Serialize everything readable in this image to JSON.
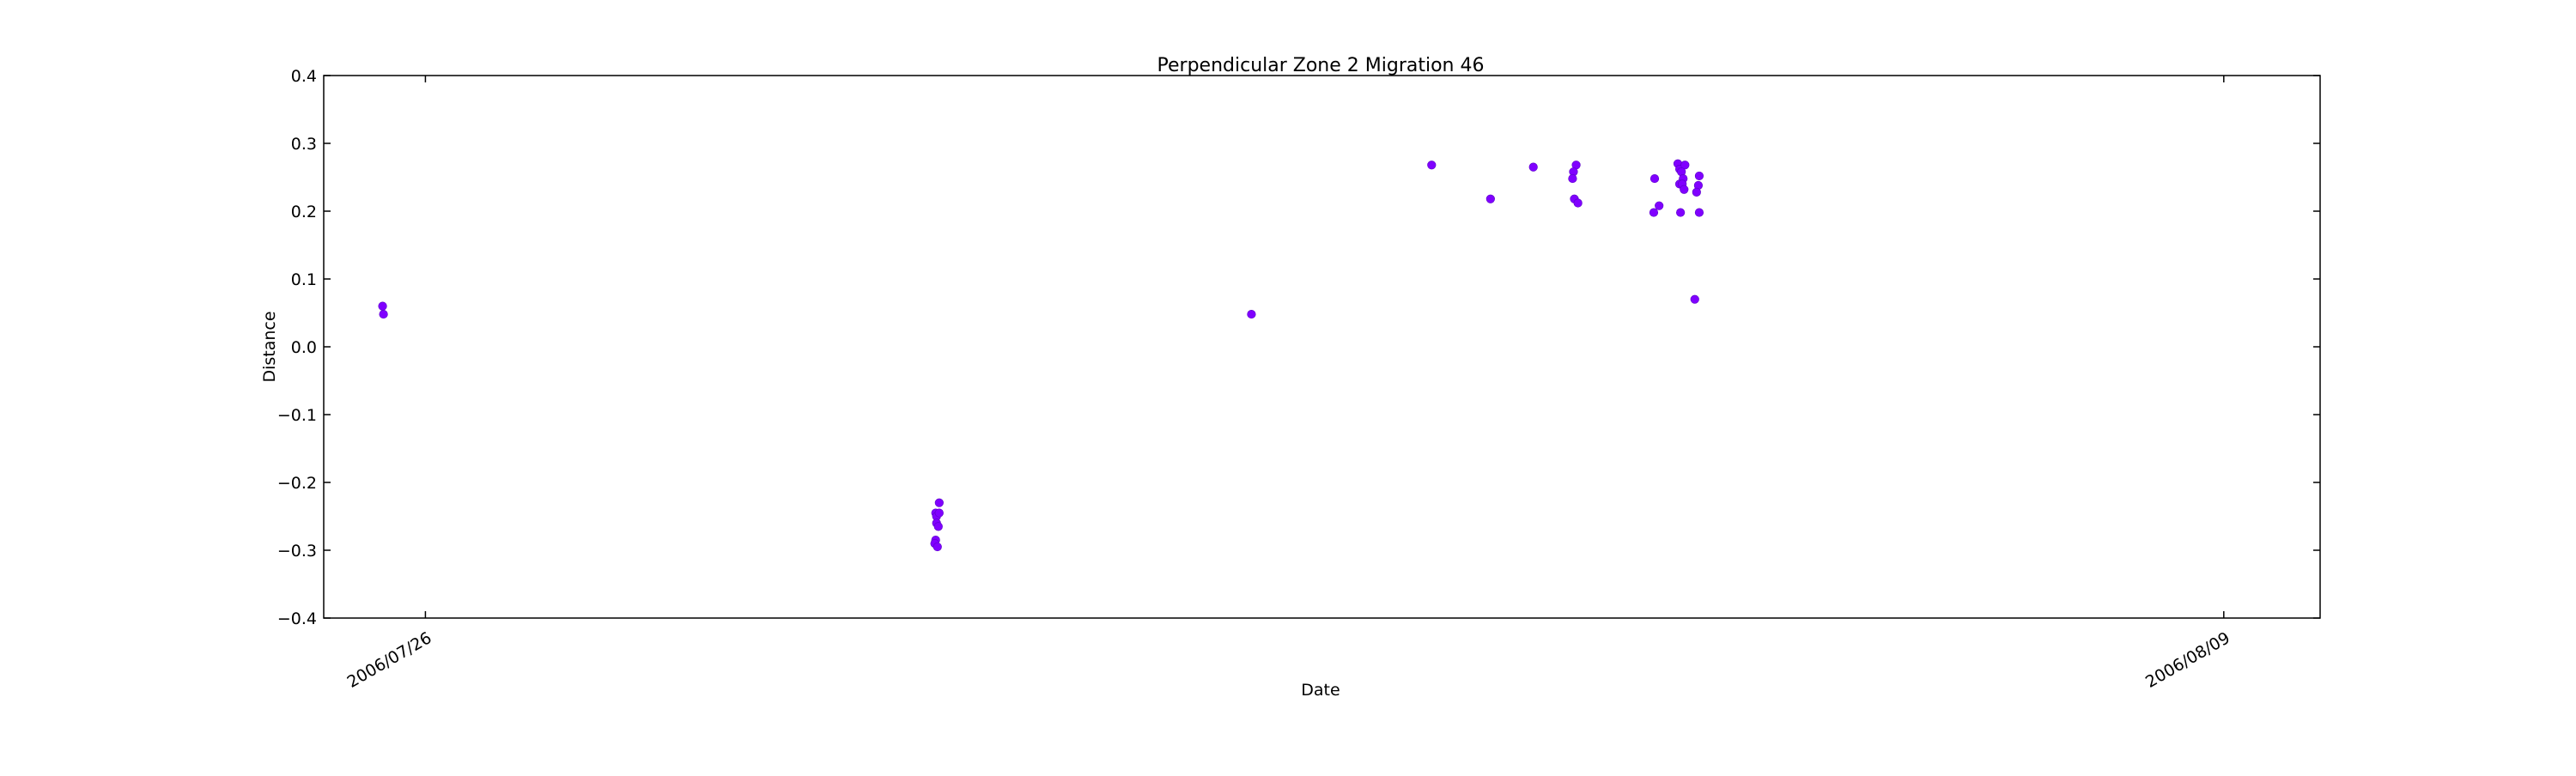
{
  "chart_data": {
    "type": "scatter",
    "title": "Perpendicular Zone 2 Migration 46",
    "xlabel": "Date",
    "ylabel": "Distance",
    "ylim": [
      -0.4,
      0.4
    ],
    "xlim": [
      "2006/07/25 05:00",
      "2006/08/09 18:00"
    ],
    "yticks": [
      "0.4",
      "0.3",
      "0.2",
      "0.1",
      "0.0",
      "−0.1",
      "−0.2",
      "−0.3",
      "−0.4"
    ],
    "ytick_values": [
      0.4,
      0.3,
      0.2,
      0.1,
      0.0,
      -0.1,
      -0.2,
      -0.3,
      -0.4
    ],
    "xticks": [
      {
        "label": "2006/07/26",
        "value": "2006/07/26 00:00"
      },
      {
        "label": "2006/08/09",
        "value": "2006/08/09 00:00"
      }
    ],
    "grid": false,
    "legend": "none",
    "marker_color": "#8000ff",
    "series": [
      {
        "points": [
          {
            "x": "2006/07/25 16:00",
            "y": 0.06
          },
          {
            "x": "2006/07/25 16:10",
            "y": 0.048
          },
          {
            "x": "2006/07/30 00:00",
            "y": -0.23
          },
          {
            "x": "2006/07/29 23:20",
            "y": -0.245
          },
          {
            "x": "2006/07/29 23:30",
            "y": -0.25
          },
          {
            "x": "2006/07/30 00:00",
            "y": -0.245
          },
          {
            "x": "2006/07/29 23:30",
            "y": -0.26
          },
          {
            "x": "2006/07/29 23:50",
            "y": -0.265
          },
          {
            "x": "2006/07/29 23:20",
            "y": -0.285
          },
          {
            "x": "2006/07/29 23:10",
            "y": -0.29
          },
          {
            "x": "2006/07/29 23:40",
            "y": -0.295
          },
          {
            "x": "2006/08/01 10:20",
            "y": 0.048
          },
          {
            "x": "2006/08/02 20:00",
            "y": 0.268
          },
          {
            "x": "2006/08/03 07:00",
            "y": 0.218
          },
          {
            "x": "2006/08/03 15:00",
            "y": 0.265
          },
          {
            "x": "2006/08/03 23:00",
            "y": 0.268
          },
          {
            "x": "2006/08/03 22:30",
            "y": 0.258
          },
          {
            "x": "2006/08/03 22:20",
            "y": 0.248
          },
          {
            "x": "2006/08/03 22:40",
            "y": 0.218
          },
          {
            "x": "2006/08/03 23:20",
            "y": 0.212
          },
          {
            "x": "2006/08/04 13:40",
            "y": 0.248
          },
          {
            "x": "2006/08/04 13:30",
            "y": 0.198
          },
          {
            "x": "2006/08/04 14:30",
            "y": 0.208
          },
          {
            "x": "2006/08/04 18:00",
            "y": 0.27
          },
          {
            "x": "2006/08/04 18:20",
            "y": 0.262
          },
          {
            "x": "2006/08/04 19:20",
            "y": 0.268
          },
          {
            "x": "2006/08/04 18:40",
            "y": 0.258
          },
          {
            "x": "2006/08/04 19:00",
            "y": 0.248
          },
          {
            "x": "2006/08/04 18:20",
            "y": 0.24
          },
          {
            "x": "2006/08/04 18:50",
            "y": 0.24
          },
          {
            "x": "2006/08/04 19:10",
            "y": 0.232
          },
          {
            "x": "2006/08/04 18:30",
            "y": 0.198
          },
          {
            "x": "2006/08/04 22:00",
            "y": 0.252
          },
          {
            "x": "2006/08/04 21:50",
            "y": 0.238
          },
          {
            "x": "2006/08/04 21:30",
            "y": 0.228
          },
          {
            "x": "2006/08/04 22:00",
            "y": 0.198
          },
          {
            "x": "2006/08/04 21:10",
            "y": 0.07
          }
        ]
      }
    ]
  }
}
